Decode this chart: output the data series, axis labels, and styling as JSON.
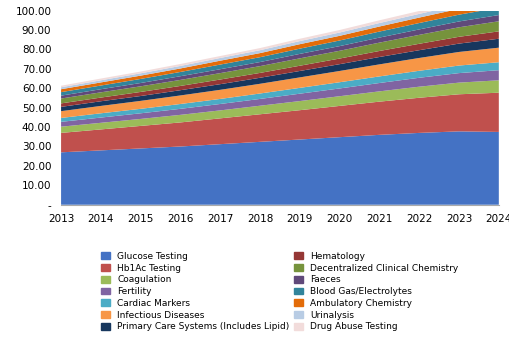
{
  "years": [
    2013,
    2014,
    2015,
    2016,
    2017,
    2018,
    2019,
    2020,
    2021,
    2022,
    2023,
    2024
  ],
  "series": [
    {
      "name": "Glucose Testing",
      "color": "#4472C4",
      "values": [
        27.0,
        28.0,
        29.0,
        30.0,
        31.2,
        32.4,
        33.6,
        34.8,
        36.0,
        37.0,
        37.8,
        37.5
      ]
    },
    {
      "name": "Hb1Ac Testing",
      "color": "#C0504D",
      "values": [
        10.0,
        10.8,
        11.6,
        12.4,
        13.3,
        14.2,
        15.1,
        16.1,
        17.1,
        18.1,
        19.1,
        20.2
      ]
    },
    {
      "name": "Coagulation",
      "color": "#9BBB59",
      "values": [
        3.2,
        3.4,
        3.6,
        3.9,
        4.1,
        4.4,
        4.7,
        5.0,
        5.3,
        5.7,
        6.0,
        6.4
      ]
    },
    {
      "name": "Fertility",
      "color": "#8064A2",
      "values": [
        2.5,
        2.7,
        2.9,
        3.1,
        3.3,
        3.5,
        3.8,
        4.0,
        4.3,
        4.6,
        4.9,
        5.2
      ]
    },
    {
      "name": "Cardiac Markers",
      "color": "#4BACC6",
      "values": [
        2.0,
        2.2,
        2.3,
        2.5,
        2.6,
        2.8,
        3.0,
        3.2,
        3.4,
        3.6,
        3.9,
        4.1
      ]
    },
    {
      "name": "Infectious Diseases",
      "color": "#F79646",
      "values": [
        3.5,
        3.8,
        4.1,
        4.4,
        4.7,
        5.0,
        5.4,
        5.8,
        6.2,
        6.6,
        7.0,
        7.5
      ]
    },
    {
      "name": "Primary Care Systems (Includes Lipid)",
      "color": "#17375E",
      "values": [
        2.2,
        2.4,
        2.5,
        2.7,
        2.9,
        3.1,
        3.3,
        3.5,
        3.8,
        4.0,
        4.3,
        4.6
      ]
    },
    {
      "name": "Hematology",
      "color": "#953735",
      "values": [
        1.8,
        1.9,
        2.1,
        2.2,
        2.4,
        2.5,
        2.7,
        2.9,
        3.1,
        3.3,
        3.5,
        3.8
      ]
    },
    {
      "name": "Decentralized Clinical Chemistry",
      "color": "#76933C",
      "values": [
        2.5,
        2.7,
        2.9,
        3.1,
        3.3,
        3.5,
        3.8,
        4.0,
        4.3,
        4.6,
        4.9,
        5.2
      ]
    },
    {
      "name": "Faeces",
      "color": "#60497A",
      "values": [
        1.5,
        1.6,
        1.7,
        1.9,
        2.0,
        2.1,
        2.3,
        2.4,
        2.6,
        2.8,
        3.0,
        3.2
      ]
    },
    {
      "name": "Blood Gas/Electrolytes",
      "color": "#31849B",
      "values": [
        1.8,
        1.9,
        2.1,
        2.2,
        2.4,
        2.5,
        2.7,
        2.9,
        3.1,
        3.3,
        3.5,
        3.8
      ]
    },
    {
      "name": "Ambulatory Chemistry",
      "color": "#E36C09",
      "values": [
        1.5,
        1.6,
        1.7,
        1.8,
        2.0,
        2.1,
        2.3,
        2.4,
        2.6,
        2.8,
        3.0,
        3.2
      ]
    },
    {
      "name": "Urinalysis",
      "color": "#B8CCE4",
      "values": [
        1.0,
        1.1,
        1.2,
        1.3,
        1.4,
        1.5,
        1.6,
        1.7,
        1.8,
        1.9,
        2.0,
        2.2
      ]
    },
    {
      "name": "Drug Abuse Testing",
      "color": "#F2DCDB",
      "values": [
        0.8,
        0.9,
        0.9,
        1.0,
        1.0,
        1.1,
        1.2,
        1.3,
        1.4,
        1.5,
        1.6,
        1.7
      ]
    }
  ],
  "ylim": [
    0,
    100
  ],
  "yticks": [
    0,
    10,
    20,
    30,
    40,
    50,
    60,
    70,
    80,
    90,
    100
  ],
  "ytick_labels": [
    "-",
    "10.00",
    "20.00",
    "30.00",
    "40.00",
    "50.00",
    "60.00",
    "70.00",
    "80.00",
    "90.00",
    "100.00"
  ],
  "background_color": "#FFFFFF",
  "legend_ncol": 2,
  "legend_fontsize": 6.5
}
